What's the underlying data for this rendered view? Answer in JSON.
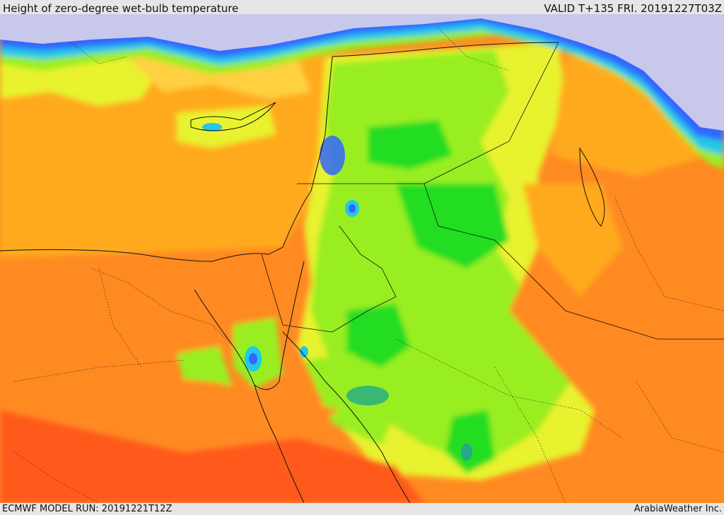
{
  "header": {
    "title": "Height of zero-degree wet-bulb temperature",
    "valid": "VALID T+135 FRI. 20191227T03Z"
  },
  "footer": {
    "model_run": "ECMWF MODEL RUN: 20191221T12Z",
    "credit": "ArabiaWeather Inc."
  },
  "legend_colors": {
    "coldest": "#c8c8ec",
    "blue": "#3366ff",
    "cyan": "#22c8e8",
    "teal": "#22aa88",
    "green": "#22dd22",
    "light_green": "#99ee22",
    "yellow_green": "#e8f22e",
    "yellow": "#ffd040",
    "orange": "#ffaa1e",
    "dark_orange": "#ff8a22",
    "red_orange": "#ff5a1e"
  }
}
